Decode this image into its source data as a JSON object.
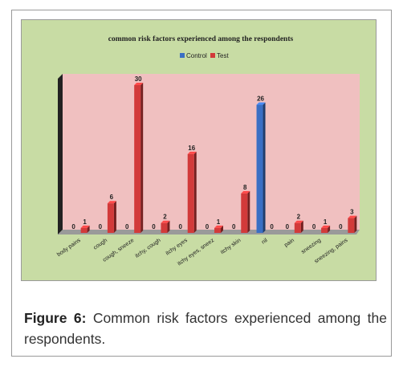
{
  "chart_data": {
    "type": "bar",
    "title": "common risk factors experienced among the respondents",
    "categories": [
      "body pains",
      "cough",
      "cough, sneeze",
      "itchy, cough",
      "itchy eyes",
      "itchy eyes, sneez",
      "itchy skin",
      "nil",
      "pain",
      "sneezing",
      "sneezing, pains"
    ],
    "series": [
      {
        "name": "Control",
        "color": "#3a6fc4",
        "values": [
          0,
          0,
          0,
          0,
          0,
          0,
          0,
          26,
          0,
          0,
          0
        ]
      },
      {
        "name": "Test",
        "color": "#d23a3a",
        "values": [
          1,
          6,
          30,
          2,
          16,
          1,
          8,
          0,
          2,
          1,
          3
        ]
      }
    ],
    "ylim": [
      0,
      30
    ],
    "legend": "top-center",
    "grid": false,
    "background": "#f0c0c0",
    "panel_color": "#c8dca4"
  },
  "caption": {
    "label": "Figure 6:",
    "text": " Common risk factors experienced among the respondents."
  }
}
